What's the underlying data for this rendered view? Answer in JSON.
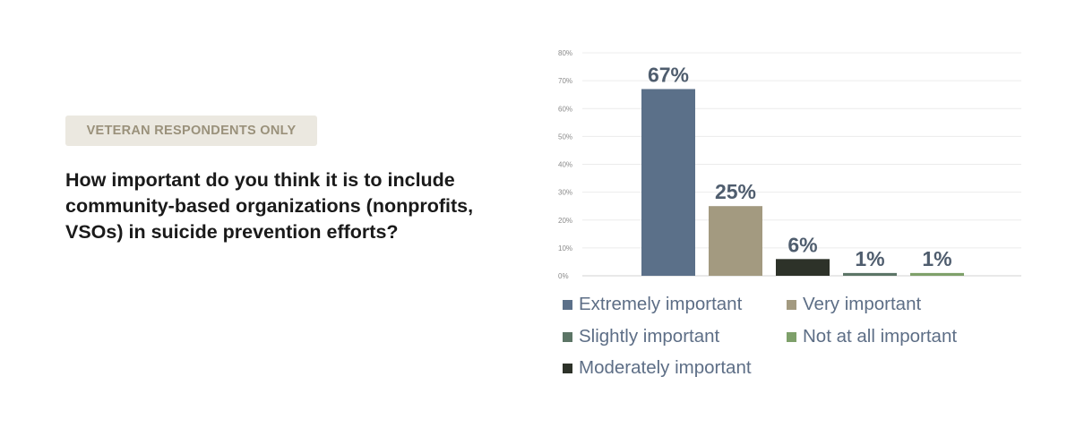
{
  "header": {
    "badge": "VETERAN RESPONDENTS ONLY",
    "question": "How important do you think it is to include community-based organizations (nonprofits, VSOs) in suicide prevention efforts?"
  },
  "chart_data": {
    "type": "bar",
    "categories": [
      "Extremely important",
      "Very important",
      "Moderately important",
      "Slightly important",
      "Not at all important"
    ],
    "values": [
      67,
      25,
      6,
      1,
      1
    ],
    "data_labels": [
      "67%",
      "25%",
      "6%",
      "1%",
      "1%"
    ],
    "colors": [
      "#5b7089",
      "#a39a80",
      "#2d3229",
      "#5c7566",
      "#7ea06a"
    ],
    "ylim": [
      0,
      80
    ],
    "yticks": [
      0,
      10,
      20,
      30,
      40,
      50,
      60,
      70,
      80
    ],
    "ytick_labels": [
      "0%",
      "10%",
      "20%",
      "30%",
      "40%",
      "50%",
      "60%",
      "70%",
      "80%"
    ],
    "grid": true,
    "legend": [
      {
        "label": "Extremely important",
        "color": "#5b7089"
      },
      {
        "label": "Very important",
        "color": "#a39a80"
      },
      {
        "label": "Slightly important",
        "color": "#5c7566"
      },
      {
        "label": "Not at all important",
        "color": "#7ea06a"
      },
      {
        "label": "Moderately important",
        "color": "#2d3229"
      }
    ],
    "legend_position": "bottom"
  }
}
